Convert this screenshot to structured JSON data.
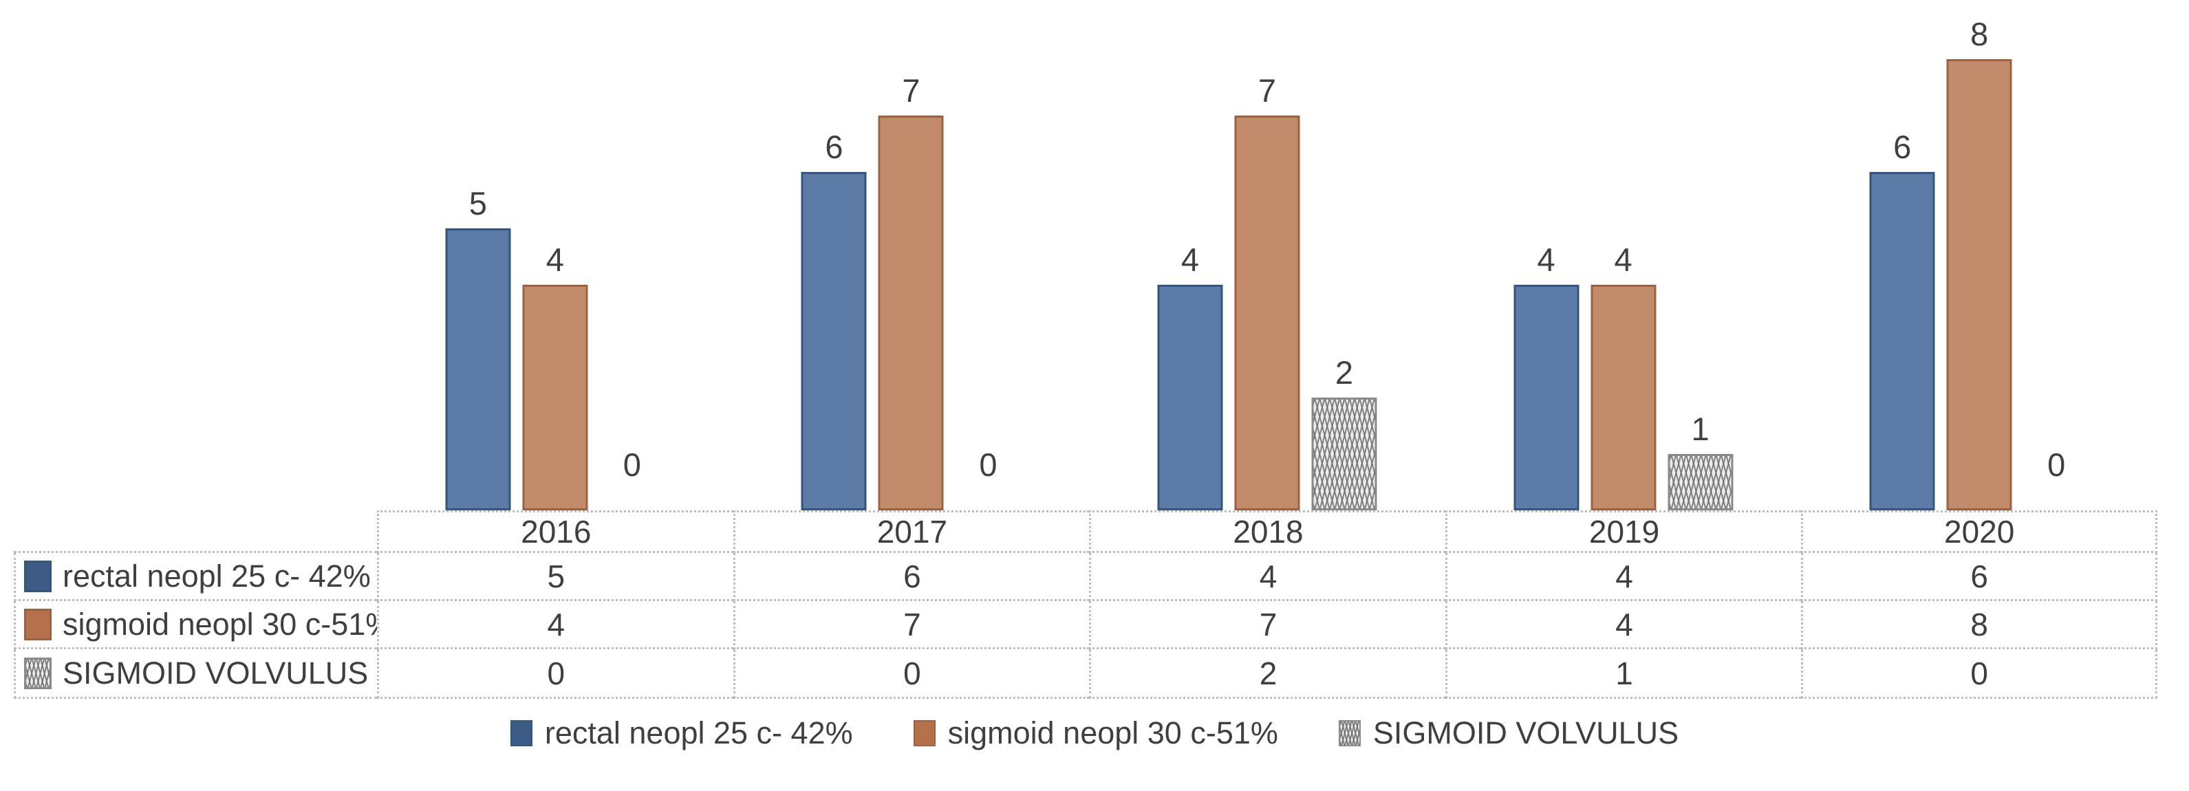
{
  "chart_data": {
    "type": "bar",
    "title": "",
    "categories": [
      "2016",
      "2017",
      "2018",
      "2019",
      "2020"
    ],
    "series": [
      {
        "name": "rectal neopl 25 c- 42%",
        "values": [
          5,
          6,
          4,
          4,
          6
        ],
        "color": "#5C7BA6",
        "border_color": "#34567E",
        "key_color": "#3C5C85",
        "pattern": "solid"
      },
      {
        "name": "sigmoid neopl 30 c-51%",
        "values": [
          4,
          7,
          7,
          4,
          8
        ],
        "color": "#C28B6B",
        "border_color": "#9C613F",
        "key_color": "#B5714C",
        "pattern": "solid"
      },
      {
        "name": "SIGMOID VOLVULUS",
        "values": [
          0,
          0,
          2,
          1,
          0
        ],
        "color": "#ECECEC",
        "border_color": "#8A8A8A",
        "key_color": "#9A9A9A",
        "pattern": "crosshatch"
      }
    ],
    "ylim": [
      0,
      8
    ],
    "grid": false,
    "data_labels": true,
    "axis_labels": "none",
    "legend_position": "bottom",
    "data_table_shown": true
  },
  "colors": {
    "text": "#3F3F3F",
    "table_border": "#BDBDBD",
    "background": "#FFFFFF"
  }
}
